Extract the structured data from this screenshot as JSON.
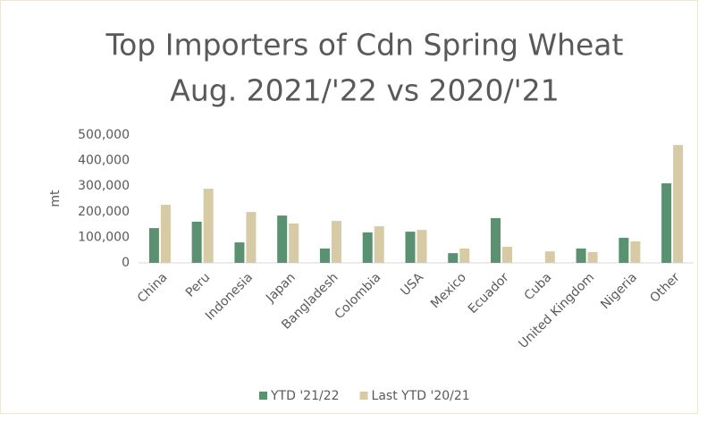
{
  "chart_data": {
    "type": "bar",
    "title": [
      "Top  Importers of Cdn Spring Wheat",
      "Aug. 2021/'22 vs 2020/'21"
    ],
    "ylabel": "mt",
    "categories": [
      "China",
      "Peru",
      "Indonesia",
      "Japan",
      "Bangladesh",
      "Colombia",
      "USA",
      "Mexico",
      "Ecuador",
      "Cuba",
      "United Kingdom",
      "Nigeria",
      "Other"
    ],
    "series": [
      {
        "name": "YTD '21/22",
        "color": "#5a9170",
        "values": [
          136000,
          161000,
          80000,
          185000,
          56000,
          119000,
          122000,
          38000,
          175000,
          0,
          56000,
          98000,
          311000
        ]
      },
      {
        "name": "Last YTD '20/21",
        "color": "#d6cba5",
        "values": [
          227000,
          290000,
          199000,
          154000,
          164000,
          143000,
          129000,
          56000,
          63000,
          45000,
          42000,
          84000,
          461000
        ]
      }
    ],
    "ylim": [
      0,
      500000
    ],
    "yticks": [
      0,
      {
        "value": 100000,
        "label": "100,000"
      },
      {
        "value": 200000,
        "label": "200,000"
      },
      {
        "value": 300000,
        "label": "300,000"
      },
      {
        "value": 400000,
        "label": "400,000"
      },
      {
        "value": 500000,
        "label": "500,000"
      }
    ],
    "legend": "bottom"
  }
}
